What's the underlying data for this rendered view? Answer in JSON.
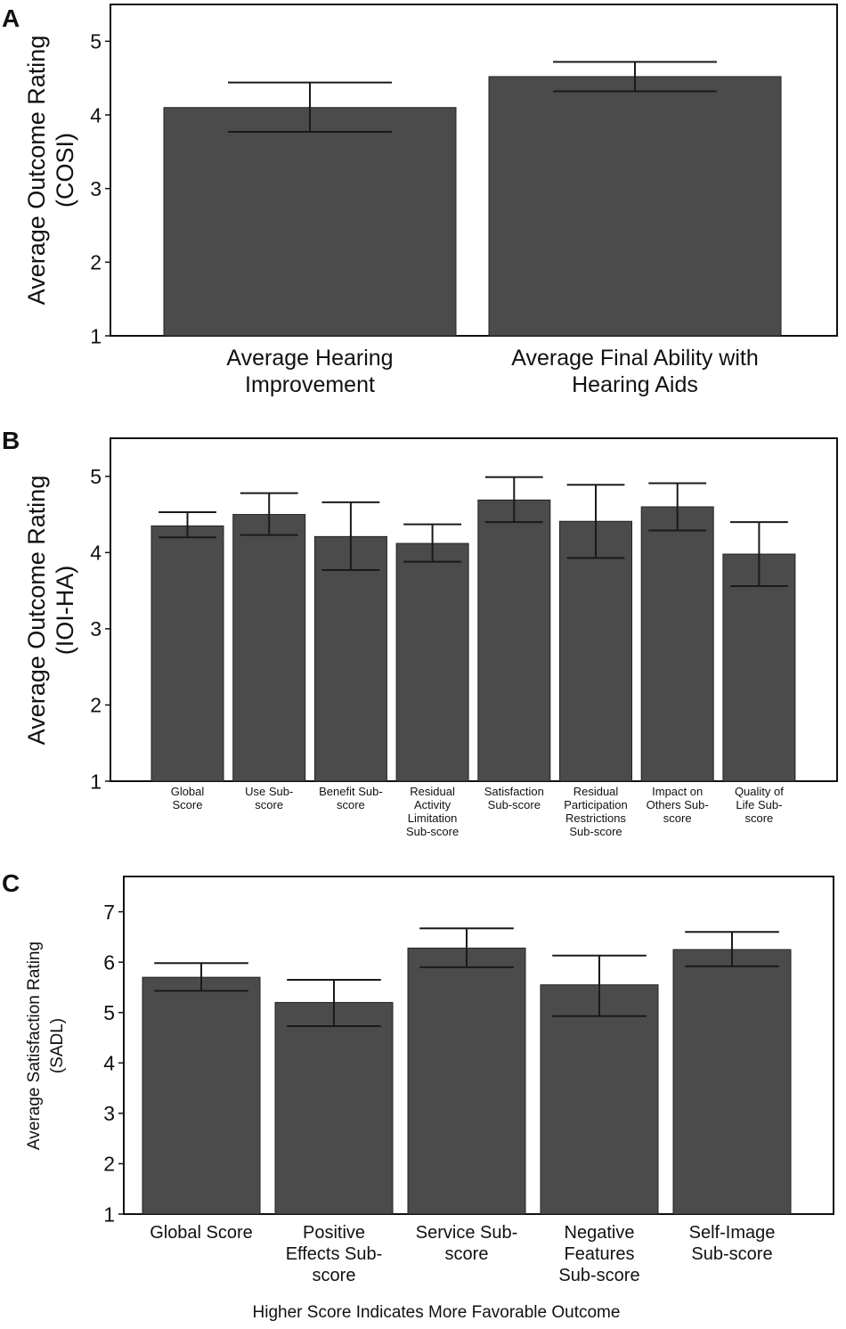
{
  "chart_data": [
    {
      "panel": "A",
      "type": "bar",
      "ylabel": [
        "Average Outcome Rating",
        "(COSI)"
      ],
      "ylim": [
        1,
        5.5
      ],
      "yticks": [
        "1",
        "2",
        "3",
        "4",
        "5"
      ],
      "categories": [
        [
          "Average Hearing",
          "Improvement"
        ],
        [
          "Average Final Ability with",
          "Hearing Aids"
        ]
      ],
      "values": [
        4.1,
        4.52
      ],
      "errors": [
        {
          "low": 3.77,
          "high": 4.44
        },
        {
          "low": 4.32,
          "high": 4.72
        }
      ]
    },
    {
      "panel": "B",
      "type": "bar",
      "ylabel": [
        "Average Outcome Rating",
        "(IOI-HA)"
      ],
      "ylim": [
        1,
        5.5
      ],
      "yticks": [
        "1",
        "2",
        "3",
        "4",
        "5"
      ],
      "categories": [
        [
          "Global",
          "Score"
        ],
        [
          "Use Sub-",
          "score"
        ],
        [
          "Benefit Sub-",
          "score"
        ],
        [
          "Residual",
          "Activity",
          "Limitation",
          "Sub-score"
        ],
        [
          "Satisfaction",
          "Sub-score"
        ],
        [
          "Residual",
          "Participation",
          "Restrictions",
          "Sub-score"
        ],
        [
          "Impact on",
          "Others Sub-",
          "score"
        ],
        [
          "Quality of",
          "Life Sub-",
          "score"
        ]
      ],
      "values": [
        4.35,
        4.5,
        4.21,
        4.12,
        4.69,
        4.41,
        4.6,
        3.98
      ],
      "errors": [
        {
          "low": 4.2,
          "high": 4.53
        },
        {
          "low": 4.23,
          "high": 4.78
        },
        {
          "low": 3.77,
          "high": 4.66
        },
        {
          "low": 3.88,
          "high": 4.37
        },
        {
          "low": 4.4,
          "high": 4.99
        },
        {
          "low": 3.93,
          "high": 4.89
        },
        {
          "low": 4.29,
          "high": 4.91
        },
        {
          "low": 3.56,
          "high": 4.4
        }
      ]
    },
    {
      "panel": "C",
      "type": "bar",
      "ylabel": [
        "Average Satisfaction Rating",
        "(SADL)"
      ],
      "ylim": [
        1,
        7.7
      ],
      "yticks": [
        "1",
        "2",
        "3",
        "4",
        "5",
        "6",
        "7"
      ],
      "categories": [
        [
          "Global Score"
        ],
        [
          "Positive",
          "Effects Sub-",
          "score"
        ],
        [
          "Service Sub-",
          "score"
        ],
        [
          "Negative",
          "Features",
          "Sub-score"
        ],
        [
          "Self-Image",
          "Sub-score"
        ]
      ],
      "values": [
        5.7,
        5.2,
        6.28,
        5.55,
        6.25
      ],
      "errors": [
        {
          "low": 5.43,
          "high": 5.98
        },
        {
          "low": 4.73,
          "high": 5.65
        },
        {
          "low": 5.9,
          "high": 6.67
        },
        {
          "low": 4.93,
          "high": 6.13
        },
        {
          "low": 5.92,
          "high": 6.6
        }
      ],
      "xlabel": "Higher Score Indicates More Favorable Outcome"
    }
  ]
}
